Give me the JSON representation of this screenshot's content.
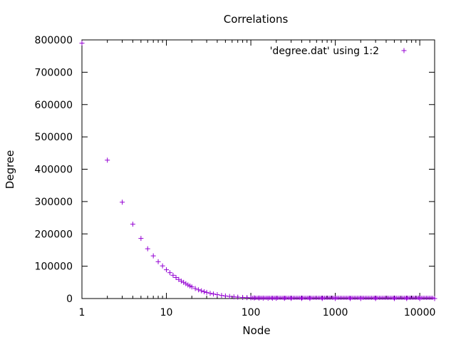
{
  "chart_data": {
    "type": "scatter",
    "title": "Correlations",
    "xlabel": "Node",
    "ylabel": "Degree",
    "x_scale": "log",
    "xlim": [
      1,
      15000
    ],
    "ylim": [
      0,
      800000
    ],
    "x_ticks": [
      {
        "value": 1,
        "label": "1"
      },
      {
        "value": 10,
        "label": "10"
      },
      {
        "value": 100,
        "label": "100"
      },
      {
        "value": 1000,
        "label": "1000"
      },
      {
        "value": 10000,
        "label": "10000"
      }
    ],
    "y_ticks": [
      {
        "value": 0,
        "label": "0"
      },
      {
        "value": 100000,
        "label": "100000"
      },
      {
        "value": 200000,
        "label": "200000"
      },
      {
        "value": 300000,
        "label": "300000"
      },
      {
        "value": 400000,
        "label": "400000"
      },
      {
        "value": 500000,
        "label": "500000"
      },
      {
        "value": 600000,
        "label": "600000"
      },
      {
        "value": 700000,
        "label": "700000"
      },
      {
        "value": 800000,
        "label": "800000"
      }
    ],
    "grid": false,
    "legend_position": "top-right",
    "series": [
      {
        "name": "'degree.dat' using 1:2",
        "color": "#9400d3",
        "marker": "plus",
        "x": [
          1,
          2,
          3,
          4,
          5,
          6,
          7,
          8,
          9,
          10,
          11,
          12,
          13,
          14,
          15,
          16,
          17,
          18,
          19,
          20,
          22,
          24,
          26,
          28,
          30,
          33,
          36,
          40,
          45,
          50,
          56,
          63,
          70,
          80,
          90,
          100,
          110,
          125,
          140,
          160,
          180,
          200,
          250,
          300,
          400,
          500,
          700,
          1000,
          1500,
          2000,
          3000,
          5000,
          7000,
          10000,
          15000
        ],
        "y": [
          790000,
          428000,
          298000,
          230000,
          186000,
          154000,
          132000,
          114000,
          101000,
          89000,
          80000,
          72000,
          65000,
          59000,
          54000,
          50000,
          46000,
          42000,
          39000,
          36000,
          31000,
          27000,
          24000,
          21000,
          19000,
          16000,
          14000,
          12000,
          9500,
          8000,
          6500,
          5200,
          4300,
          3400,
          2800,
          2300,
          1900,
          1600,
          1300,
          1100,
          900,
          800,
          600,
          450,
          330,
          260,
          180,
          130,
          90,
          70,
          50,
          30,
          22,
          16,
          12
        ]
      }
    ]
  }
}
